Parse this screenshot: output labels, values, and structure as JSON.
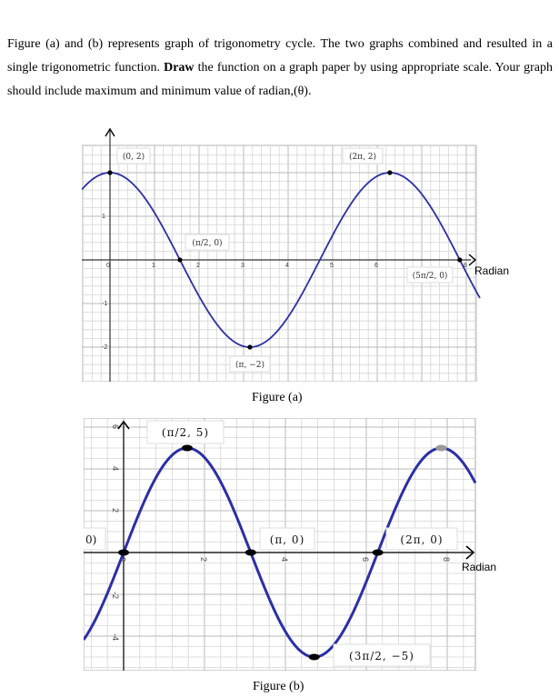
{
  "question": {
    "part1": "Figure (a) and (b) represents graph of trigonometry cycle. The two graphs combined and resulted in a single trigonometric function. ",
    "emph": "Draw",
    "part2": " the function on a graph paper by using appropriate scale. Your graph should include maximum and minimum value of radian,(θ)."
  },
  "captions": {
    "a": "Figure (a)",
    "b": "Figure (b)"
  },
  "colors": {
    "curve": "#2b2fa6",
    "curve_b": "#2b2fa6"
  },
  "chart_data": [
    {
      "type": "line",
      "title": "Figure (a)",
      "xlabel": "Radian",
      "ylabel": "",
      "xlim": [
        -0.5,
        7.95
      ],
      "ylim": [
        -2.7,
        3.0
      ],
      "x_ticks": [
        "0",
        "1",
        "2",
        "3",
        "4",
        "5",
        "6",
        "8"
      ],
      "y_ticks": [
        "1",
        "-1",
        "-2"
      ],
      "function": "2cos(x)",
      "points": [
        {
          "x": 0,
          "y": 2,
          "label": "(0, 2)"
        },
        {
          "x": 1.5708,
          "y": 0,
          "label": "(π/2, 0)"
        },
        {
          "x": 3.1416,
          "y": -2,
          "label": "(π, −2)"
        },
        {
          "x": 6.2832,
          "y": 2,
          "label": "(2π, 2)"
        },
        {
          "x": 7.854,
          "y": 0,
          "label": "(5π/2, 0)"
        }
      ]
    },
    {
      "type": "line",
      "title": "Figure (b)",
      "xlabel": "Radian",
      "ylabel": "",
      "xlim": [
        -0.8,
        8.8
      ],
      "ylim": [
        -5.6,
        6.3
      ],
      "x_ticks": [
        "0",
        "2",
        "4",
        "6",
        "8"
      ],
      "y_ticks": [
        "6",
        "4",
        "2",
        "-2",
        "-4"
      ],
      "function": "5sin(x)",
      "edge_label": "0)",
      "points": [
        {
          "x": 0,
          "y": 0,
          "label": ""
        },
        {
          "x": 1.5708,
          "y": 5,
          "label": "(π/2, 5)"
        },
        {
          "x": 3.1416,
          "y": 0,
          "label": "(π, 0)"
        },
        {
          "x": 4.7124,
          "y": -5,
          "label": "(3π/2, −5)"
        },
        {
          "x": 6.2832,
          "y": 0,
          "label": "(2π, 0)"
        },
        {
          "x": 7.854,
          "y": 5,
          "label": ""
        }
      ]
    }
  ]
}
